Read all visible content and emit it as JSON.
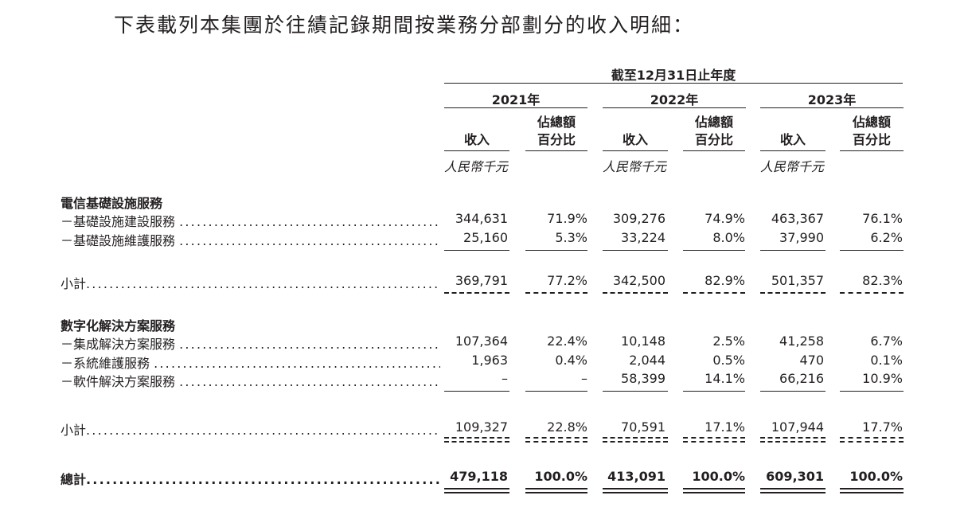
{
  "intro": "下表載列本集團於往績記錄期間按業務分部劃分的收入明細：",
  "period_header": "截至12月31日止年度",
  "years": [
    "2021年",
    "2022年",
    "2023年"
  ],
  "col_revenue": "收入",
  "col_pct_line1": "佔總額",
  "col_pct_line2": "百分比",
  "unit": "人民幣千元",
  "dots": "........................................................................................",
  "telecom": {
    "title": "電信基礎設施服務",
    "rows": [
      {
        "label": "－基礎設施建設服務",
        "values": [
          "344,631",
          "71.9%",
          "309,276",
          "74.9%",
          "463,367",
          "76.1%"
        ]
      },
      {
        "label": "－基礎設施維護服務",
        "values": [
          "25,160",
          "5.3%",
          "33,224",
          "8.0%",
          "37,990",
          "6.2%"
        ]
      }
    ],
    "subtotal": {
      "label": "小計",
      "values": [
        "369,791",
        "77.2%",
        "342,500",
        "82.9%",
        "501,357",
        "82.3%"
      ]
    }
  },
  "digital": {
    "title": "數字化解決方案服務",
    "rows": [
      {
        "label": "－集成解決方案服務",
        "values": [
          "107,364",
          "22.4%",
          "10,148",
          "2.5%",
          "41,258",
          "6.7%"
        ]
      },
      {
        "label": "－系統維護服務",
        "values": [
          "1,963",
          "0.4%",
          "2,044",
          "0.5%",
          "470",
          "0.1%"
        ]
      },
      {
        "label": "－軟件解決方案服務",
        "values": [
          "–",
          "–",
          "58,399",
          "14.1%",
          "66,216",
          "10.9%"
        ]
      }
    ],
    "subtotal": {
      "label": "小計",
      "values": [
        "109,327",
        "22.8%",
        "70,591",
        "17.1%",
        "107,944",
        "17.7%"
      ]
    }
  },
  "total": {
    "label": "總計",
    "values": [
      "479,118",
      "100.0%",
      "413,091",
      "100.0%",
      "609,301",
      "100.0%"
    ]
  }
}
